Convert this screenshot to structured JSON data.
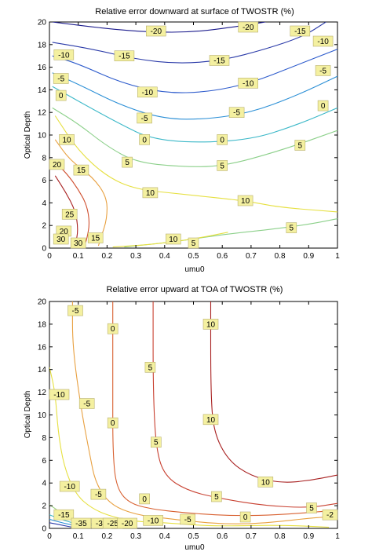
{
  "chart_data": [
    {
      "type": "contour",
      "title": "Relative error downward at surface of TWOSTR (%)",
      "xlabel": "umu0",
      "ylabel": "Optical Depth",
      "xlim": [
        0,
        1
      ],
      "ylim": [
        0,
        20
      ],
      "x_ticks": [
        0,
        0.1,
        0.2,
        0.3,
        0.4,
        0.5,
        0.6,
        0.7,
        0.8,
        0.9,
        1
      ],
      "y_ticks": [
        0,
        2,
        4,
        6,
        8,
        10,
        12,
        14,
        16,
        18,
        20
      ],
      "grid": false,
      "levels": [
        {
          "level": -20,
          "color": "#1a1a8c",
          "points": [
            [
              0.01,
              20
            ],
            [
              0.2,
              19.4
            ],
            [
              0.35,
              19.1
            ],
            [
              0.5,
              19.1
            ],
            [
              0.65,
              19.6
            ],
            [
              0.75,
              20
            ]
          ]
        },
        {
          "level": -15,
          "color": "#2a3aa8",
          "points": [
            [
              0.01,
              18.2
            ],
            [
              0.15,
              17.6
            ],
            [
              0.3,
              16.7
            ],
            [
              0.45,
              16.3
            ],
            [
              0.6,
              16.6
            ],
            [
              0.75,
              17.6
            ],
            [
              0.88,
              18.7
            ],
            [
              0.96,
              20
            ]
          ]
        },
        {
          "level": -10,
          "color": "#2d5bcc",
          "points": [
            [
              0.01,
              17.0
            ],
            [
              0.1,
              16.3
            ],
            [
              0.25,
              14.6
            ],
            [
              0.4,
              13.7
            ],
            [
              0.55,
              13.8
            ],
            [
              0.7,
              14.6
            ],
            [
              0.85,
              16.1
            ],
            [
              1.0,
              17.6
            ]
          ]
        },
        {
          "level": -5,
          "color": "#2b8fd6",
          "points": [
            [
              0.01,
              15.5
            ],
            [
              0.1,
              14.5
            ],
            [
              0.25,
              12.6
            ],
            [
              0.4,
              11.4
            ],
            [
              0.55,
              11.4
            ],
            [
              0.7,
              12.0
            ],
            [
              0.85,
              13.4
            ],
            [
              1.0,
              15.2
            ]
          ]
        },
        {
          "level": 0,
          "color": "#3bb8c8",
          "points": [
            [
              0.01,
              14.3
            ],
            [
              0.1,
              13.0
            ],
            [
              0.25,
              10.9
            ],
            [
              0.35,
              9.7
            ],
            [
              0.5,
              9.3
            ],
            [
              0.7,
              9.6
            ],
            [
              0.85,
              10.8
            ],
            [
              1.0,
              12.4
            ]
          ]
        },
        {
          "level": 5,
          "color": "#8cd08a",
          "points": [
            [
              0.01,
              12.4
            ],
            [
              0.1,
              11.0
            ],
            [
              0.2,
              9.0
            ],
            [
              0.3,
              7.6
            ],
            [
              0.45,
              7.2
            ],
            [
              0.6,
              7.2
            ],
            [
              0.8,
              8.6
            ],
            [
              1.0,
              10.4
            ]
          ]
        },
        {
          "level": 10,
          "color": "#e6e040",
          "points": [
            [
              0.02,
              11.7
            ],
            [
              0.1,
              8.6
            ],
            [
              0.2,
              6.3
            ],
            [
              0.3,
              5.2
            ],
            [
              0.45,
              4.8
            ],
            [
              0.6,
              4.4
            ],
            [
              0.7,
              4.1
            ],
            [
              0.8,
              3.6
            ],
            [
              1.0,
              3.2
            ]
          ]
        },
        {
          "level": 15,
          "color": "#e8a040",
          "points": [
            [
              0.02,
              9.6
            ],
            [
              0.07,
              7.8
            ],
            [
              0.15,
              6.3
            ],
            [
              0.2,
              4.5
            ],
            [
              0.2,
              2.6
            ],
            [
              0.18,
              1.0
            ],
            [
              0.17,
              0.2
            ]
          ]
        },
        {
          "level": 20,
          "color": "#d05030",
          "points": [
            [
              0.02,
              7.6
            ],
            [
              0.06,
              6.6
            ],
            [
              0.1,
              5.2
            ],
            [
              0.13,
              3.8
            ],
            [
              0.14,
              2.2
            ],
            [
              0.13,
              0.8
            ],
            [
              0.12,
              0.1
            ]
          ]
        },
        {
          "level": 25,
          "color": "#a82020",
          "points": [
            [
              0.02,
              6.4
            ],
            [
              0.06,
              4.8
            ],
            [
              0.09,
              3.3
            ],
            [
              0.1,
              1.6
            ],
            [
              0.09,
              0.3
            ]
          ]
        },
        {
          "level": 5,
          "color": "#8cd08a",
          "points": [
            [
              0.26,
              0.1
            ],
            [
              0.45,
              0.6
            ],
            [
              0.6,
              1.2
            ],
            [
              0.75,
              1.6
            ],
            [
              0.9,
              2.1
            ],
            [
              1.0,
              2.6
            ]
          ]
        },
        {
          "level": 10,
          "color": "#e6e040",
          "points": [
            [
              0.22,
              0.1
            ],
            [
              0.35,
              0.3
            ],
            [
              0.5,
              0.8
            ],
            [
              0.62,
              1.4
            ]
          ]
        }
      ],
      "labels": [
        {
          "text": "-20",
          "x": 0.37,
          "y": 19.2
        },
        {
          "text": "-20",
          "x": 0.69,
          "y": 19.8
        },
        {
          "text": "-15",
          "x": 0.87,
          "y": 19.2
        },
        {
          "text": "-10",
          "x": 0.05,
          "y": 17.1
        },
        {
          "text": "-15",
          "x": 0.26,
          "y": 17.0
        },
        {
          "text": "-10",
          "x": 0.95,
          "y": 18.3
        },
        {
          "text": "-15",
          "x": 0.59,
          "y": 16.6
        },
        {
          "text": "-5",
          "x": 0.04,
          "y": 15.0
        },
        {
          "text": "-5",
          "x": 0.95,
          "y": 15.7
        },
        {
          "text": "-10",
          "x": 0.69,
          "y": 14.6
        },
        {
          "text": "-10",
          "x": 0.34,
          "y": 13.8
        },
        {
          "text": "0",
          "x": 0.04,
          "y": 13.5
        },
        {
          "text": "0",
          "x": 0.95,
          "y": 12.6
        },
        {
          "text": "-5",
          "x": 0.65,
          "y": 12.0
        },
        {
          "text": "-5",
          "x": 0.33,
          "y": 11.5
        },
        {
          "text": "0",
          "x": 0.6,
          "y": 9.6
        },
        {
          "text": "0",
          "x": 0.33,
          "y": 9.6
        },
        {
          "text": "10",
          "x": 0.06,
          "y": 9.6
        },
        {
          "text": "5",
          "x": 0.87,
          "y": 9.1
        },
        {
          "text": "5",
          "x": 0.27,
          "y": 7.6
        },
        {
          "text": "5",
          "x": 0.6,
          "y": 7.3
        },
        {
          "text": "20",
          "x": 0.02,
          "y": 7.4
        },
        {
          "text": "15",
          "x": 0.11,
          "y": 6.9
        },
        {
          "text": "10",
          "x": 0.35,
          "y": 4.9
        },
        {
          "text": "10",
          "x": 0.68,
          "y": 4.2
        },
        {
          "text": "25",
          "x": 0.07,
          "y": 3.0
        },
        {
          "text": "5",
          "x": 0.84,
          "y": 1.8
        },
        {
          "text": "20",
          "x": 0.05,
          "y": 1.5
        },
        {
          "text": "15",
          "x": 0.16,
          "y": 0.9
        },
        {
          "text": "10",
          "x": 0.43,
          "y": 0.8
        },
        {
          "text": "30",
          "x": 0.04,
          "y": 0.8
        },
        {
          "text": "30",
          "x": 0.1,
          "y": 0.3
        },
        {
          "text": "5",
          "x": 0.5,
          "y": 0.4
        }
      ]
    },
    {
      "type": "contour",
      "title": "Relative error upward at TOA of TWOSTR (%)",
      "xlabel": "umu0",
      "ylabel": "Optical Depth",
      "xlim": [
        0,
        1
      ],
      "ylim": [
        0,
        20
      ],
      "x_ticks": [
        0,
        0.1,
        0.2,
        0.3,
        0.4,
        0.5,
        0.6,
        0.7,
        0.8,
        0.9,
        1
      ],
      "y_ticks": [
        0,
        2,
        4,
        6,
        8,
        10,
        12,
        14,
        16,
        18,
        20
      ],
      "grid": false,
      "levels": [
        {
          "level": 10,
          "color": "#a82020",
          "points": [
            [
              0.56,
              20
            ],
            [
              0.56,
              12
            ],
            [
              0.57,
              8.5
            ],
            [
              0.62,
              6.0
            ],
            [
              0.7,
              4.6
            ],
            [
              0.8,
              4.0
            ],
            [
              0.9,
              4.2
            ],
            [
              1.0,
              4.7
            ]
          ]
        },
        {
          "level": 5,
          "color": "#c84030",
          "points": [
            [
              0.36,
              20
            ],
            [
              0.36,
              12
            ],
            [
              0.37,
              7.0
            ],
            [
              0.4,
              4.6
            ],
            [
              0.48,
              3.3
            ],
            [
              0.6,
              2.6
            ],
            [
              0.75,
              2.0
            ],
            [
              0.9,
              1.8
            ],
            [
              1.0,
              2.2
            ]
          ]
        },
        {
          "level": 0,
          "color": "#d86030",
          "points": [
            [
              0.22,
              20
            ],
            [
              0.22,
              12
            ],
            [
              0.22,
              7.0
            ],
            [
              0.23,
              3.8
            ],
            [
              0.27,
              2.3
            ],
            [
              0.35,
              1.7
            ],
            [
              0.5,
              1.3
            ],
            [
              0.65,
              1.1
            ],
            [
              0.8,
              1.2
            ],
            [
              1.0,
              1.6
            ]
          ]
        },
        {
          "level": -5,
          "color": "#e8a040",
          "points": [
            [
              0.08,
              20
            ],
            [
              0.08,
              16
            ],
            [
              0.11,
              10.5
            ],
            [
              0.14,
              6.5
            ],
            [
              0.16,
              4.0
            ],
            [
              0.21,
              2.1
            ],
            [
              0.3,
              1.2
            ],
            [
              0.4,
              0.9
            ],
            [
              0.5,
              0.6
            ],
            [
              0.6,
              0.4
            ],
            [
              0.7,
              0.4
            ],
            [
              0.8,
              0.6
            ],
            [
              0.9,
              0.9
            ],
            [
              0.96,
              1.0
            ]
          ]
        },
        {
          "level": -10,
          "color": "#e6e040",
          "points": [
            [
              0.0,
              14.2
            ],
            [
              0.02,
              12.0
            ],
            [
              0.03,
              8.5
            ],
            [
              0.05,
              5.5
            ],
            [
              0.09,
              3.0
            ],
            [
              0.15,
              1.7
            ],
            [
              0.22,
              1.0
            ],
            [
              0.3,
              0.6
            ],
            [
              0.4,
              0.5
            ],
            [
              0.5,
              0.3
            ],
            [
              0.6,
              0.2
            ],
            [
              0.8,
              0.3
            ],
            [
              0.97,
              0.1
            ]
          ]
        },
        {
          "level": -15,
          "color": "#9ad080",
          "points": [
            [
              0.0,
              2.1
            ],
            [
              0.05,
              1.2
            ],
            [
              0.1,
              0.6
            ],
            [
              0.18,
              0.3
            ],
            [
              0.3,
              0.15
            ]
          ]
        },
        {
          "level": -20,
          "color": "#3bb8c8",
          "points": [
            [
              0.0,
              1.2
            ],
            [
              0.05,
              0.7
            ],
            [
              0.1,
              0.35
            ],
            [
              0.2,
              0.2
            ]
          ]
        },
        {
          "level": -25,
          "color": "#2b8fd6",
          "points": [
            [
              0.0,
              0.8
            ],
            [
              0.05,
              0.45
            ],
            [
              0.1,
              0.2
            ]
          ]
        },
        {
          "level": -30,
          "color": "#2a3aa8",
          "points": [
            [
              0.0,
              0.5
            ],
            [
              0.05,
              0.25
            ],
            [
              0.08,
              0.1
            ]
          ]
        }
      ],
      "labels": [
        {
          "text": "-5",
          "x": 0.09,
          "y": 19.2
        },
        {
          "text": "0",
          "x": 0.22,
          "y": 17.6
        },
        {
          "text": "10",
          "x": 0.56,
          "y": 18.0
        },
        {
          "text": "5",
          "x": 0.35,
          "y": 14.2
        },
        {
          "text": "-10",
          "x": 0.02,
          "y": 11.8
        },
        {
          "text": "-5",
          "x": 0.13,
          "y": 11.0
        },
        {
          "text": "10",
          "x": 0.56,
          "y": 9.6
        },
        {
          "text": "0",
          "x": 0.22,
          "y": 9.3
        },
        {
          "text": "5",
          "x": 0.37,
          "y": 7.6
        },
        {
          "text": "10",
          "x": 0.75,
          "y": 4.1
        },
        {
          "text": "-10",
          "x": 0.07,
          "y": 3.7
        },
        {
          "text": "-5",
          "x": 0.17,
          "y": 3.0
        },
        {
          "text": "5",
          "x": 0.58,
          "y": 2.8
        },
        {
          "text": "0",
          "x": 0.33,
          "y": 2.6
        },
        {
          "text": "5",
          "x": 0.91,
          "y": 1.8
        },
        {
          "text": "-2",
          "x": 0.99,
          "y": 1.2
        },
        {
          "text": "-15",
          "x": 0.05,
          "y": 1.2
        },
        {
          "text": "0",
          "x": 0.68,
          "y": 1.0
        },
        {
          "text": "-5",
          "x": 0.48,
          "y": 0.8
        },
        {
          "text": "-10",
          "x": 0.36,
          "y": 0.7
        },
        {
          "text": "-35",
          "x": 0.11,
          "y": 0.2
        },
        {
          "text": "-30",
          "x": 0.18,
          "y": 0.2
        },
        {
          "text": "-25",
          "x": 0.22,
          "y": 0.3
        },
        {
          "text": "-20",
          "x": 0.27,
          "y": 0.4
        }
      ]
    }
  ]
}
